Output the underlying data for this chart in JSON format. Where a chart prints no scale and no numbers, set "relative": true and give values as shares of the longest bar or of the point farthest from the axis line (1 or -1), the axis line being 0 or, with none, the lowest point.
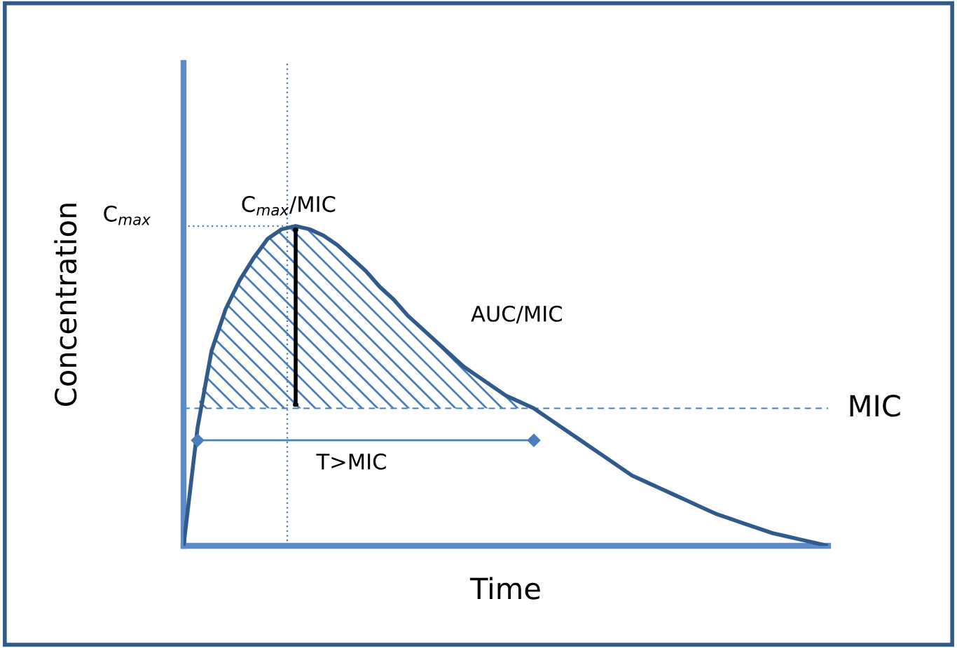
{
  "chart_data": {
    "type": "line",
    "relative": true,
    "xlabel": "Time",
    "ylabel": "Concentration",
    "categories": [
      null,
      null,
      null,
      null,
      null,
      null,
      null,
      null,
      null,
      null,
      null,
      null,
      null,
      null,
      null,
      null,
      null,
      null,
      null,
      null,
      null,
      null,
      null,
      null,
      null,
      null,
      null,
      null,
      null,
      null,
      null,
      null,
      null,
      null,
      null,
      null,
      null,
      null,
      null,
      null,
      null,
      null,
      null,
      null,
      null,
      null,
      null
    ],
    "series": [
      {
        "color": "#2f5a8a",
        "values": [
          0,
          0.37,
          0.61,
          0.74,
          0.83,
          0.9,
          0.96,
          0.99,
          1,
          0.99,
          0.97,
          0.94,
          0.9,
          0.86,
          0.81,
          0.77,
          0.72,
          0.68,
          0.64,
          0.6,
          0.56,
          0.53,
          0.5,
          0.47,
          0.45,
          0.43,
          0.4,
          0.37,
          0.34,
          0.31,
          0.28,
          0.25,
          0.22,
          0.2,
          0.18,
          0.16,
          0.14,
          0.12,
          0.1,
          0.085,
          0.07,
          0.055,
          0.04,
          0.03,
          0.02,
          0.01,
          0
        ]
      },
      {
        "type": "area",
        "color": "#4a7ebb",
        "values": [
          null,
          0.43,
          0.61,
          0.74,
          0.83,
          0.9,
          0.96,
          0.99,
          1,
          0.99,
          0.97,
          0.94,
          0.9,
          0.86,
          0.81,
          0.77,
          0.72,
          0.68,
          0.64,
          0.6,
          0.56,
          0.53,
          0.5,
          0.47,
          0.45,
          0.43,
          null,
          null,
          null,
          null,
          null,
          null,
          null,
          null,
          null,
          null,
          null,
          null,
          null,
          null,
          null,
          null,
          null,
          null,
          null,
          null,
          null
        ]
      },
      {
        "type": "line",
        "color": "#4a7ebb",
        "marker": "diamond",
        "values": [
          null,
          0.33,
          null,
          null,
          null,
          null,
          null,
          null,
          null,
          null,
          null,
          null,
          null,
          null,
          null,
          null,
          null,
          null,
          null,
          null,
          null,
          null,
          null,
          null,
          null,
          0.33,
          null,
          null,
          null,
          null,
          null,
          null,
          null,
          null,
          null,
          null,
          null,
          null,
          null,
          null,
          null,
          null,
          null,
          null,
          null,
          null,
          null
        ]
      }
    ],
    "ref_lines": [
      {
        "axis": "y",
        "value": 0.43,
        "label": "MIC",
        "color": "#4a7ebb",
        "line_style": "dashed"
      },
      {
        "axis": "y",
        "value": 1,
        "label": "C$_{max}$",
        "color": "#4a7ebb",
        "line_style": "dotted"
      }
    ],
    "annotations": [
      "C$_{max}$/MIC",
      "AUC/MIC",
      "T>MIC"
    ]
  }
}
